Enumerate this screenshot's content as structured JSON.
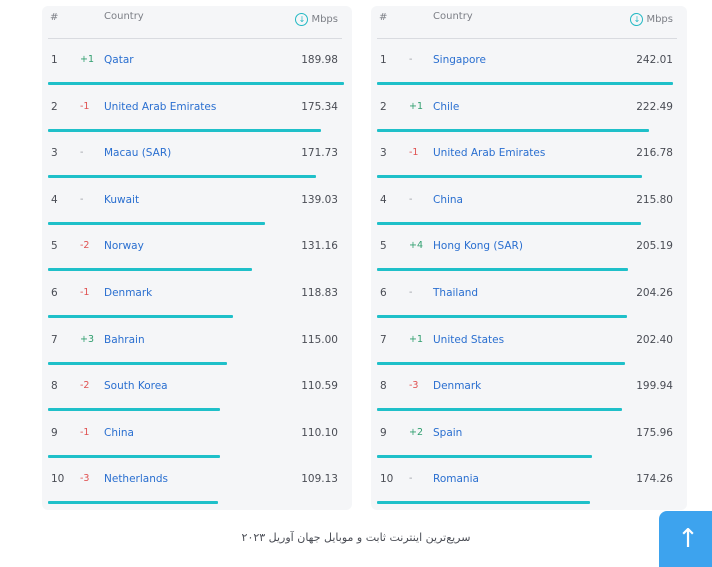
{
  "header": {
    "rank": "#",
    "country": "Country",
    "unit": "Mbps"
  },
  "left_table": {
    "rows": [
      {
        "rank": "1",
        "change": "+1",
        "country": "Qatar",
        "speed": "189.98"
      },
      {
        "rank": "2",
        "change": "-1",
        "country": "United Arab Emirates",
        "speed": "175.34"
      },
      {
        "rank": "3",
        "change": "-",
        "country": "Macau (SAR)",
        "speed": "171.73"
      },
      {
        "rank": "4",
        "change": "-",
        "country": "Kuwait",
        "speed": "139.03"
      },
      {
        "rank": "5",
        "change": "-2",
        "country": "Norway",
        "speed": "131.16"
      },
      {
        "rank": "6",
        "change": "-1",
        "country": "Denmark",
        "speed": "118.83"
      },
      {
        "rank": "7",
        "change": "+3",
        "country": "Bahrain",
        "speed": "115.00"
      },
      {
        "rank": "8",
        "change": "-2",
        "country": "South Korea",
        "speed": "110.59"
      },
      {
        "rank": "9",
        "change": "-1",
        "country": "China",
        "speed": "110.10"
      },
      {
        "rank": "10",
        "change": "-3",
        "country": "Netherlands",
        "speed": "109.13"
      }
    ]
  },
  "right_table": {
    "rows": [
      {
        "rank": "1",
        "change": "-",
        "country": "Singapore",
        "speed": "242.01"
      },
      {
        "rank": "2",
        "change": "+1",
        "country": "Chile",
        "speed": "222.49"
      },
      {
        "rank": "3",
        "change": "-1",
        "country": "United Arab Emirates",
        "speed": "216.78"
      },
      {
        "rank": "4",
        "change": "-",
        "country": "China",
        "speed": "215.80"
      },
      {
        "rank": "5",
        "change": "+4",
        "country": "Hong Kong (SAR)",
        "speed": "205.19"
      },
      {
        "rank": "6",
        "change": "-",
        "country": "Thailand",
        "speed": "204.26"
      },
      {
        "rank": "7",
        "change": "+1",
        "country": "United States",
        "speed": "202.40"
      },
      {
        "rank": "8",
        "change": "-3",
        "country": "Denmark",
        "speed": "199.94"
      },
      {
        "rank": "9",
        "change": "+2",
        "country": "Spain",
        "speed": "175.96"
      },
      {
        "rank": "10",
        "change": "-",
        "country": "Romania",
        "speed": "174.26"
      }
    ]
  },
  "caption": "سریع‌ترین اینترنت ثابت و موبایل جهان آوریل ۲۰۲۳",
  "icons": {
    "unit_icon": "download-circle-icon",
    "scroll_top_icon": "arrow-up-icon"
  },
  "colors": {
    "bar": "#1fc0c9",
    "link": "#2a6fd0",
    "up": "#2f9e6e",
    "down": "#e05252",
    "scroll_button": "#3da3ee"
  }
}
